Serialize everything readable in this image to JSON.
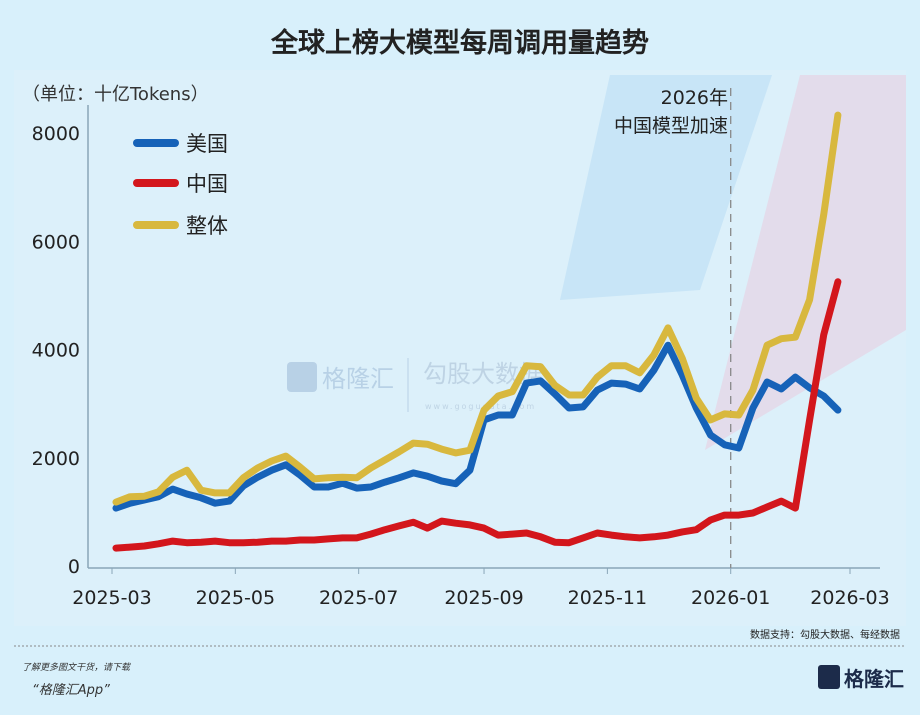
{
  "chart_data": {
    "type": "line",
    "title": "全球上榜大模型每周调用量趋势",
    "unit_label": "（单位：十亿Tokens）",
    "ylim": [
      0,
      8000
    ],
    "yticks": [
      0,
      2000,
      4000,
      6000,
      8000
    ],
    "xticks": [
      "2025-03",
      "2025-05",
      "2025-07",
      "2025-09",
      "2025-11",
      "2026-01",
      "2026-03"
    ],
    "grid": false,
    "legend_position": "top-left",
    "annotation": {
      "lines": [
        "2026年",
        "中国模型加速"
      ],
      "x": "2026-01-01"
    },
    "x": [
      "2025-03-03",
      "2025-03-10",
      "2025-03-17",
      "2025-03-24",
      "2025-03-31",
      "2025-04-07",
      "2025-04-14",
      "2025-04-21",
      "2025-04-28",
      "2025-05-05",
      "2025-05-12",
      "2025-05-19",
      "2025-05-26",
      "2025-06-02",
      "2025-06-09",
      "2025-06-16",
      "2025-06-23",
      "2025-06-30",
      "2025-07-07",
      "2025-07-14",
      "2025-07-21",
      "2025-07-28",
      "2025-08-04",
      "2025-08-11",
      "2025-08-18",
      "2025-08-25",
      "2025-09-01",
      "2025-09-08",
      "2025-09-15",
      "2025-09-22",
      "2025-09-29",
      "2025-10-06",
      "2025-10-13",
      "2025-10-20",
      "2025-10-27",
      "2025-11-03",
      "2025-11-10",
      "2025-11-17",
      "2025-11-24",
      "2025-12-01",
      "2025-12-08",
      "2025-12-15",
      "2025-12-22",
      "2025-12-29",
      "2026-01-05",
      "2026-01-12",
      "2026-01-19",
      "2026-01-26",
      "2026-02-02",
      "2026-02-09",
      "2026-02-16",
      "2026-02-23"
    ],
    "series": [
      {
        "name": "美国",
        "color": "#1662b8",
        "values": [
          1070,
          1160,
          1220,
          1280,
          1420,
          1330,
          1260,
          1160,
          1200,
          1480,
          1640,
          1770,
          1870,
          1680,
          1460,
          1460,
          1530,
          1440,
          1460,
          1550,
          1630,
          1720,
          1660,
          1570,
          1520,
          1770,
          2700,
          2790,
          2790,
          3380,
          3420,
          3180,
          2920,
          2940,
          3250,
          3380,
          3360,
          3270,
          3620,
          4080,
          3530,
          2920,
          2420,
          2240,
          2180,
          2920,
          3400,
          3270,
          3490,
          3290,
          3140,
          2880
        ]
      },
      {
        "name": "中国",
        "color": "#d3161c",
        "values": [
          330,
          350,
          370,
          410,
          460,
          430,
          440,
          460,
          430,
          430,
          440,
          460,
          460,
          480,
          480,
          500,
          520,
          520,
          590,
          670,
          740,
          810,
          700,
          830,
          790,
          760,
          700,
          570,
          590,
          610,
          540,
          440,
          430,
          520,
          610,
          570,
          540,
          520,
          540,
          570,
          630,
          670,
          850,
          940,
          940,
          980,
          1090,
          1200,
          1070,
          2700,
          4270,
          5250
        ]
      },
      {
        "name": "整体",
        "color": "#d8b83e",
        "values": [
          1180,
          1280,
          1290,
          1370,
          1640,
          1770,
          1400,
          1350,
          1350,
          1630,
          1810,
          1940,
          2030,
          1830,
          1610,
          1630,
          1640,
          1630,
          1810,
          1960,
          2110,
          2270,
          2250,
          2160,
          2090,
          2140,
          2880,
          3140,
          3220,
          3700,
          3680,
          3340,
          3160,
          3160,
          3490,
          3700,
          3700,
          3570,
          3900,
          4400,
          3840,
          3100,
          2700,
          2810,
          2790,
          3250,
          4080,
          4200,
          4230,
          4920,
          6490,
          8330
        ]
      }
    ]
  },
  "watermark": {
    "brand": "格隆汇",
    "brand2": "勾股大数据",
    "url": "www.gogudata.com"
  },
  "footer": {
    "source": "数据支持：勾股大数据、每经数据",
    "promo_line1": "了解更多图文干货，请下载",
    "promo_line2": "“格隆汇App”",
    "logo_text": "格隆汇"
  }
}
